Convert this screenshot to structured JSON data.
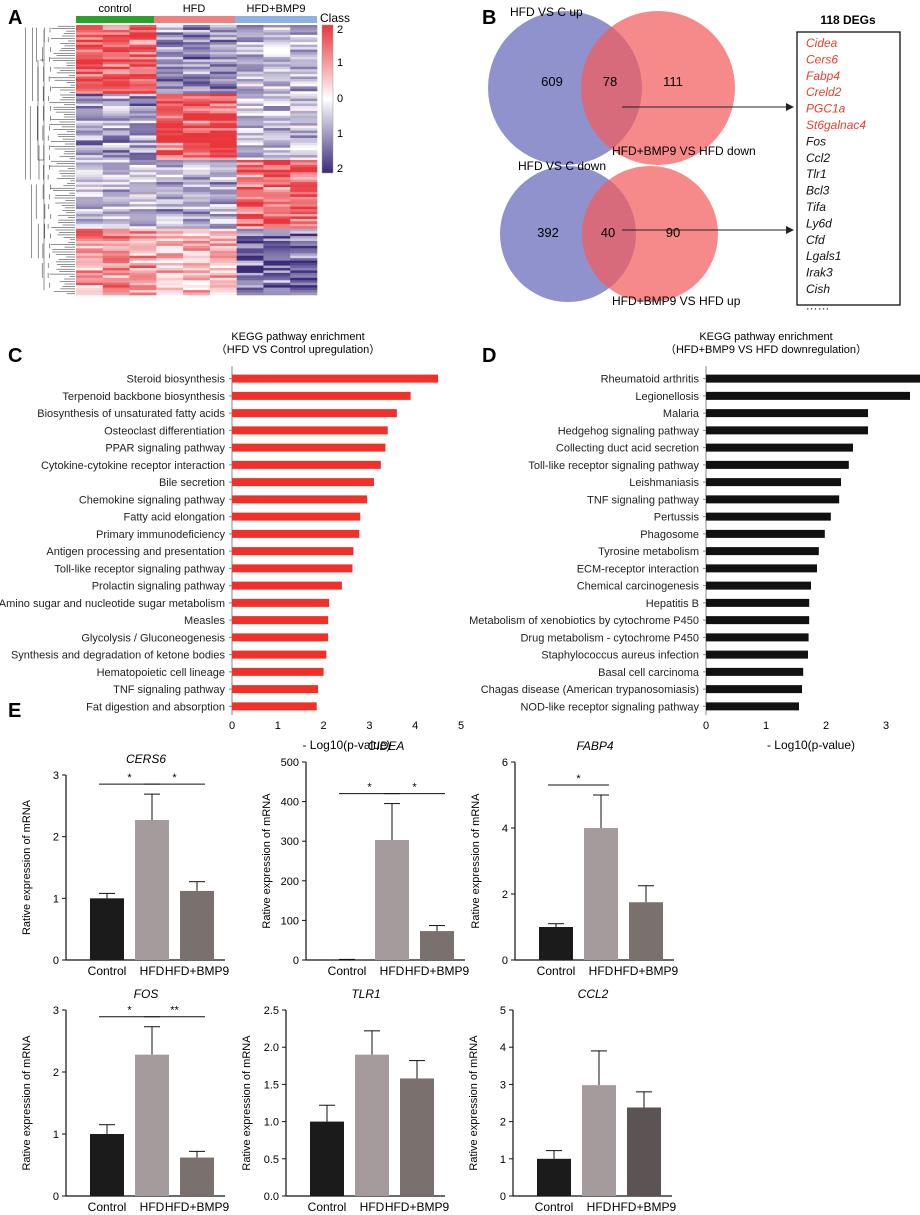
{
  "figure": {
    "panel_letters": [
      "A",
      "B",
      "C",
      "D",
      "E"
    ]
  },
  "heatmap": {
    "groups": [
      "control",
      "HFD",
      "HFD+BMP9"
    ],
    "group_colors": [
      "#2ca02c",
      "#f07f7f",
      "#8db3e2"
    ],
    "legend_title": "Class",
    "scale_ticks": [
      "2",
      "1",
      "0",
      "1",
      "2"
    ],
    "colors": {
      "high": "#e8363c",
      "mid": "#ffffff",
      "low": "#3b2a7a"
    }
  },
  "venn": {
    "top": {
      "left_label": "HFD VS C up",
      "right_label": "HFD+BMP9 VS HFD down",
      "left_only": "609",
      "overlap": "78",
      "right_only": "111"
    },
    "bottom": {
      "left_label": "HFD VS C down",
      "right_label": "HFD+BMP9 VS HFD up",
      "left_only": "392",
      "overlap": "40",
      "right_only": "90"
    },
    "colors": {
      "left": "#7b7fc4",
      "right": "#f25c5c"
    },
    "deg_title": "118  DEGs",
    "deg_red": [
      "Cidea",
      "Cers6",
      "Fabp4",
      "Creld2",
      "PGC1a",
      "St6galnac4"
    ],
    "deg_black": [
      "Fos",
      "Ccl2",
      "Tlr1",
      "Bcl3",
      "Tifa",
      "Ly6d",
      "Cfd",
      "Lgals1",
      "Irak3",
      "Cish",
      "……"
    ],
    "red_color": "#e8412d"
  },
  "chart_data": [
    {
      "panel": "C",
      "type": "bar",
      "orientation": "horizontal",
      "title": "KEGG pathway enrichment",
      "subtitle": "（HFD VS Control upregulation）",
      "xlabel": "- Log10(p-value)",
      "xlim": [
        0,
        5
      ],
      "xticks": [
        0,
        1,
        2,
        3,
        4,
        5
      ],
      "color": "#f2302a",
      "categories": [
        "Steroid biosynthesis",
        "Terpenoid backbone biosynthesis",
        "Biosynthesis of unsaturated fatty acids",
        "Osteoclast differentiation",
        "PPAR signaling pathway",
        "Cytokine-cytokine receptor interaction",
        "Bile secretion",
        "Chemokine signaling pathway",
        "Fatty acid elongation",
        "Primary immunodeficiency",
        "Antigen processing and presentation",
        "Toll-like receptor signaling pathway",
        "Prolactin signaling pathway",
        "Amino sugar and nucleotide sugar metabolism",
        "Measles",
        "Glycolysis / Gluconeogenesis",
        "Synthesis and degradation of ketone bodies",
        "Hematopoietic cell lineage",
        "TNF signaling pathway",
        "Fat digestion and absorption"
      ],
      "values": [
        4.5,
        3.9,
        3.6,
        3.4,
        3.35,
        3.25,
        3.1,
        2.95,
        2.8,
        2.78,
        2.65,
        2.63,
        2.4,
        2.12,
        2.1,
        2.1,
        2.06,
        2.0,
        1.88,
        1.85
      ]
    },
    {
      "panel": "D",
      "type": "bar",
      "orientation": "horizontal",
      "title": "KEGG pathway enrichment",
      "subtitle": "（HFD+BMP9 VS HFD downregulation）",
      "xlabel": "- Log10(p-value)",
      "xlim": [
        0,
        3.5
      ],
      "xticks": [
        0,
        1,
        2,
        3
      ],
      "color": "#111111",
      "categories": [
        "Rheumatoid arthritis",
        "Legionellosis",
        "Malaria",
        "Hedgehog signaling pathway",
        "Collecting duct acid secretion",
        "Toll-like receptor signaling pathway",
        "Leishmaniasis",
        "TNF signaling pathway",
        "Pertussis",
        "Phagosome",
        "Tyrosine metabolism",
        "ECM-receptor interaction",
        "Chemical carcinogenesis",
        "Hepatitis B",
        "Metabolism of xenobiotics by cytochrome P450",
        "Drug metabolism - cytochrome P450",
        "Staphylococcus aureus infection",
        "Basal cell carcinoma",
        "Chagas disease (American trypanosomiasis)",
        "NOD-like receptor signaling pathway"
      ],
      "values": [
        3.58,
        3.4,
        2.7,
        2.7,
        2.45,
        2.38,
        2.25,
        2.22,
        2.08,
        1.98,
        1.88,
        1.85,
        1.75,
        1.72,
        1.72,
        1.71,
        1.7,
        1.62,
        1.6,
        1.55
      ]
    },
    {
      "panel": "E",
      "type": "bar",
      "title": "CERS6",
      "ylabel": "Rative expression of mRNA",
      "categories": [
        "Control",
        "HFD",
        "HFD+BMP9"
      ],
      "values": [
        1.0,
        2.27,
        1.12
      ],
      "errors": [
        0.08,
        0.42,
        0.15
      ],
      "ylim": [
        0,
        3
      ],
      "yticks": [
        0,
        1,
        2,
        3
      ],
      "colors": [
        "#1b1b1b",
        "#a59a9c",
        "#7a716e"
      ],
      "significance": [
        {
          "from": 0,
          "to": 1,
          "label": "*"
        },
        {
          "from": 1,
          "to": 2,
          "label": "*"
        }
      ]
    },
    {
      "panel": "E",
      "type": "bar",
      "title": "CIDEA",
      "ylabel": "Rative expression of mRNA",
      "categories": [
        "Control",
        "HFD",
        "HFD+BMP9"
      ],
      "values": [
        1.0,
        303,
        73
      ],
      "errors": [
        0.5,
        92,
        14
      ],
      "ylim": [
        0,
        500
      ],
      "yticks": [
        0,
        100,
        200,
        300,
        400,
        500
      ],
      "colors": [
        "#1b1b1b",
        "#a59a9c",
        "#7a716e"
      ],
      "significance": [
        {
          "from": 0,
          "to": 1,
          "label": "*"
        },
        {
          "from": 1,
          "to": 2,
          "label": "*"
        }
      ]
    },
    {
      "panel": "E",
      "type": "bar",
      "title": "FABP4",
      "ylabel": "Rative expression of mRNA",
      "categories": [
        "Control",
        "HFD",
        "HFD+BMP9"
      ],
      "values": [
        1.0,
        4.0,
        1.75
      ],
      "errors": [
        0.1,
        1.0,
        0.5
      ],
      "ylim": [
        0,
        6
      ],
      "yticks": [
        0,
        2,
        4,
        6
      ],
      "colors": [
        "#1b1b1b",
        "#a59a9c",
        "#7a716e"
      ],
      "significance": [
        {
          "from": 0,
          "to": 1,
          "label": "*"
        }
      ]
    },
    {
      "panel": "E",
      "type": "bar",
      "title": "FOS",
      "ylabel": "Rative expression of mRNA",
      "categories": [
        "Control",
        "HFD",
        "HFD+BMP9"
      ],
      "values": [
        1.0,
        2.28,
        0.62
      ],
      "errors": [
        0.15,
        0.45,
        0.1
      ],
      "ylim": [
        0,
        3
      ],
      "yticks": [
        0,
        1,
        2,
        3
      ],
      "colors": [
        "#1b1b1b",
        "#a59a9c",
        "#7a716e"
      ],
      "significance": [
        {
          "from": 0,
          "to": 1,
          "label": "*"
        },
        {
          "from": 1,
          "to": 2,
          "label": "**"
        }
      ]
    },
    {
      "panel": "E",
      "type": "bar",
      "title": "TLR1",
      "ylabel": "Rative expression of mRNA",
      "categories": [
        "Control",
        "HFD",
        "HFD+BMP9"
      ],
      "values": [
        1.0,
        1.9,
        1.58
      ],
      "errors": [
        0.22,
        0.32,
        0.24
      ],
      "ylim": [
        0,
        2.5
      ],
      "yticks": [
        0.0,
        0.5,
        1.0,
        1.5,
        2.0,
        2.5
      ],
      "colors": [
        "#1b1b1b",
        "#a59a9c",
        "#7a716e"
      ],
      "significance": []
    },
    {
      "panel": "E",
      "type": "bar",
      "title": "CCL2",
      "ylabel": "Rative expression of mRNA",
      "categories": [
        "Control",
        "HFD",
        "HFD+BMP9"
      ],
      "values": [
        1.0,
        2.98,
        2.38
      ],
      "errors": [
        0.22,
        0.92,
        0.42
      ],
      "ylim": [
        0,
        5
      ],
      "yticks": [
        0,
        1,
        2,
        3,
        4,
        5
      ],
      "colors": [
        "#1b1b1b",
        "#a59a9c",
        "#5c5454"
      ],
      "significance": []
    }
  ]
}
